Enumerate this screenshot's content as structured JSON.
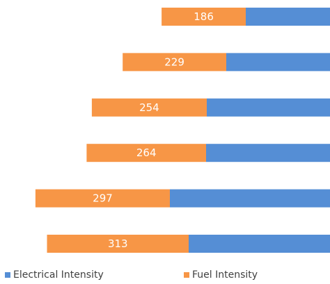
{
  "chart_data": {
    "type": "bar",
    "orientation": "horizontal",
    "stacked": true,
    "grid": false,
    "legend_position": "bottom",
    "series": [
      {
        "name": "Fuel Intensity",
        "color": "#F79646",
        "values": [
          186,
          229,
          254,
          264,
          297,
          313
        ],
        "show_data_labels": true
      },
      {
        "name": "Electrical Intensity",
        "color": "#558ED5",
        "show_data_labels": false
      }
    ],
    "legend": [
      {
        "label": "Electrical Intensity",
        "color": "#558ED5"
      },
      {
        "label": "Fuel Intensity",
        "color": "#F79646"
      }
    ]
  }
}
